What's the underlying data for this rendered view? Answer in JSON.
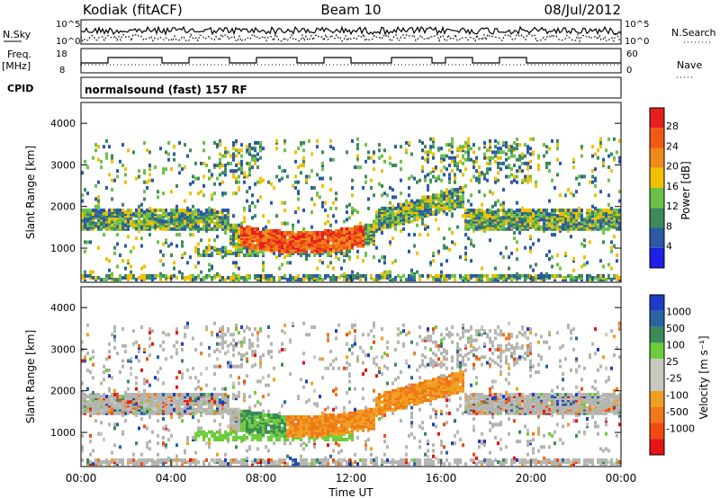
{
  "header": {
    "station": "Kodiak (fitACF)",
    "beam": "Beam 10",
    "date": "08/Jul/2012"
  },
  "status_panels": {
    "nsky_label": "N.Sky",
    "nsky_ticks": [
      "10^5",
      "10^0"
    ],
    "nsearch_label": "N.Search",
    "nsearch_ticks": [
      "10^5",
      "10^0"
    ],
    "freq_label_line1": "Freq.",
    "freq_label_line2": "[MHz]",
    "freq_ticks": [
      "18",
      "8"
    ],
    "nave_label": "Nave",
    "nave_ticks": [
      "60",
      "0"
    ],
    "cpid_label": "CPID",
    "cpid_text": "normalsound (fast) 157 RF"
  },
  "colors": {
    "power_scale": [
      "#1e1ee6",
      "#2a5aa6",
      "#3d8a5a",
      "#6cc04a",
      "#f0c000",
      "#f08a1a",
      "#f05a10",
      "#e61e1e"
    ],
    "velocity_scale": [
      "#1e3cc8",
      "#2a64a0",
      "#3a8a5a",
      "#6ccc3a",
      "#c8c8c0",
      "#c8c8c0",
      "#f0a020",
      "#f07818",
      "#f04a10",
      "#e61414"
    ],
    "ground_scatter": "#b4b4b0"
  },
  "chart_data": [
    {
      "type": "heatmap",
      "name": "power",
      "ylabel": "Slant Range [km]",
      "ylim": [
        180,
        4500
      ],
      "yticks": [
        1000,
        2000,
        3000,
        4000
      ],
      "colorbar_label": "Power [dB]",
      "colorbar_ticks": [
        "28",
        "24",
        "20",
        "16",
        "12",
        "8",
        "4"
      ],
      "colorbar_range": [
        0,
        32
      ],
      "xlim": [
        0,
        24
      ],
      "description_bands": [
        {
          "t0": 0,
          "t1": 6.5,
          "r0": 1500,
          "r1": 1800,
          "level": 10
        },
        {
          "t0": 6.5,
          "t1": 12.5,
          "r0": 900,
          "r1": 1700,
          "level": 24
        },
        {
          "t0": 12.5,
          "t1": 17,
          "r0": 1500,
          "r1": 2200,
          "level": 14
        },
        {
          "t0": 17,
          "t1": 24,
          "r0": 1500,
          "r1": 1800,
          "level": 12
        }
      ]
    },
    {
      "type": "heatmap",
      "name": "velocity",
      "xlabel": "Time UT",
      "ylabel": "Slant Range [km]",
      "ylim": [
        180,
        4500
      ],
      "yticks": [
        1000,
        2000,
        3000,
        4000
      ],
      "colorbar_label": "Velocity [m s⁻¹]",
      "colorbar_ticks": [
        "1000",
        "500",
        "100",
        "25",
        "-25",
        "-100",
        "-500",
        "-1000"
      ],
      "xticks": [
        "00:00",
        "04:00",
        "08:00",
        "12:00",
        "16:00",
        "20:00",
        "00:00"
      ],
      "xlim": [
        0,
        24
      ]
    }
  ],
  "axes": {
    "xlabel": "Time UT",
    "ylabel": "Slant Range [km]",
    "yticks": [
      "1000",
      "2000",
      "3000",
      "4000"
    ],
    "xticks": [
      "00:00",
      "04:00",
      "08:00",
      "12:00",
      "16:00",
      "20:00",
      "00:00"
    ],
    "power_label": "Power [dB]",
    "velocity_label": "Velocity [m s⁻¹]",
    "power_ticks": [
      "28",
      "24",
      "20",
      "16",
      "12",
      "8",
      "4"
    ],
    "velocity_ticks": [
      "1000",
      "500",
      "100",
      "25",
      "-25",
      "-100",
      "-500",
      "-1000"
    ]
  }
}
